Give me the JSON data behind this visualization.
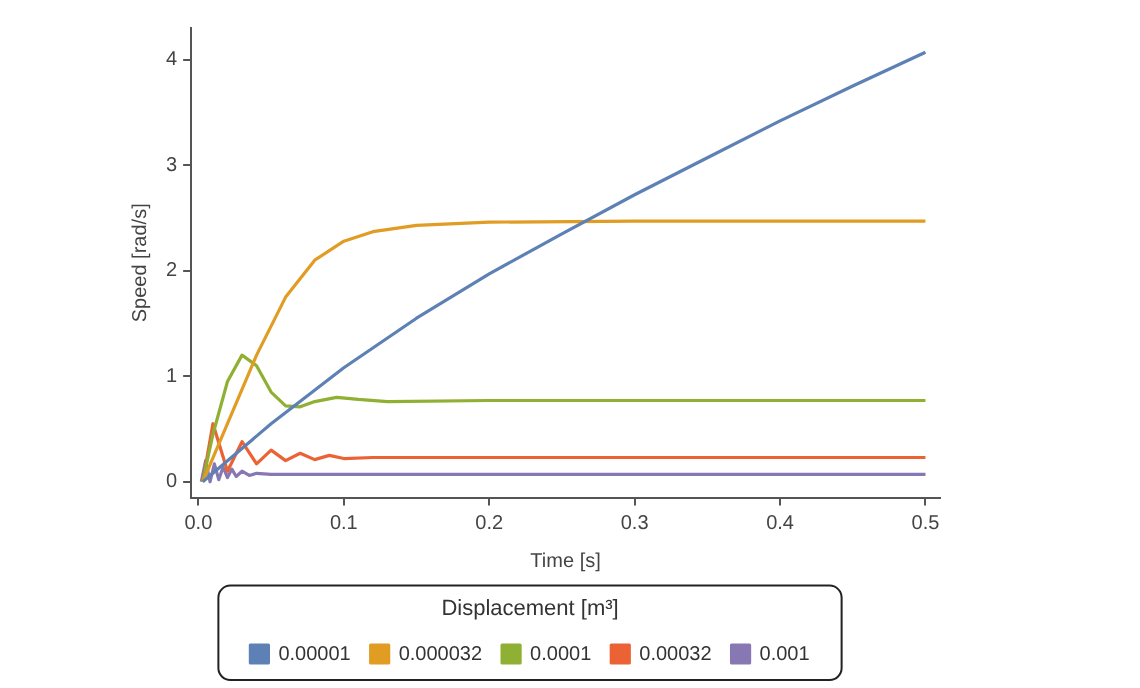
{
  "chart_data": {
    "type": "line",
    "xlabel": "Time [s]",
    "ylabel": "Speed [rad/s]",
    "legend_title": "Displacement [m³]",
    "legend": "bottom",
    "grid": false,
    "marker": "none",
    "line_style": "solid",
    "xlim": [
      -0.005,
      0.51
    ],
    "ylim": [
      -0.15,
      4.3
    ],
    "xticks": [
      {
        "value": 0,
        "label": "0.0"
      },
      0.1,
      0.2,
      0.3,
      0.4,
      0.5
    ],
    "yticks": [
      0,
      1,
      2,
      3,
      4
    ],
    "series": [
      {
        "name": "0.00001",
        "color": "#5e81b5",
        "x": [
          0.003,
          0.05,
          0.1,
          0.15,
          0.2,
          0.25,
          0.3,
          0.35,
          0.4,
          0.45,
          0.5
        ],
        "values": [
          0,
          0.55,
          1.08,
          1.55,
          1.97,
          2.35,
          2.72,
          3.07,
          3.42,
          3.75,
          4.07
        ]
      },
      {
        "name": "0.000032",
        "color": "#e19c24",
        "x": [
          0.003,
          0.02,
          0.04,
          0.06,
          0.08,
          0.1,
          0.12,
          0.15,
          0.2,
          0.3,
          0.5
        ],
        "values": [
          0,
          0.55,
          1.2,
          1.75,
          2.1,
          2.28,
          2.37,
          2.43,
          2.46,
          2.47,
          2.47
        ]
      },
      {
        "name": "0.0001",
        "color": "#8fb032",
        "x": [
          0.003,
          0.01,
          0.02,
          0.03,
          0.04,
          0.05,
          0.06,
          0.07,
          0.08,
          0.095,
          0.11,
          0.13,
          0.2,
          0.5
        ],
        "values": [
          0,
          0.45,
          0.95,
          1.2,
          1.1,
          0.85,
          0.72,
          0.71,
          0.76,
          0.8,
          0.78,
          0.76,
          0.77,
          0.77
        ]
      },
      {
        "name": "0.00032",
        "color": "#eb6235",
        "x": [
          0.003,
          0.01,
          0.02,
          0.03,
          0.04,
          0.05,
          0.06,
          0.07,
          0.08,
          0.09,
          0.1,
          0.12,
          0.5
        ],
        "values": [
          0,
          0.55,
          0.1,
          0.38,
          0.17,
          0.3,
          0.2,
          0.27,
          0.21,
          0.25,
          0.22,
          0.23,
          0.23
        ]
      },
      {
        "name": "0.001",
        "color": "#8778b3",
        "x": [
          0.002,
          0.005,
          0.008,
          0.011,
          0.014,
          0.017,
          0.02,
          0.023,
          0.026,
          0.03,
          0.035,
          0.04,
          0.05,
          0.5
        ],
        "values": [
          0,
          0.2,
          0.0,
          0.17,
          0.02,
          0.14,
          0.04,
          0.12,
          0.05,
          0.1,
          0.06,
          0.08,
          0.07,
          0.07
        ]
      }
    ]
  }
}
